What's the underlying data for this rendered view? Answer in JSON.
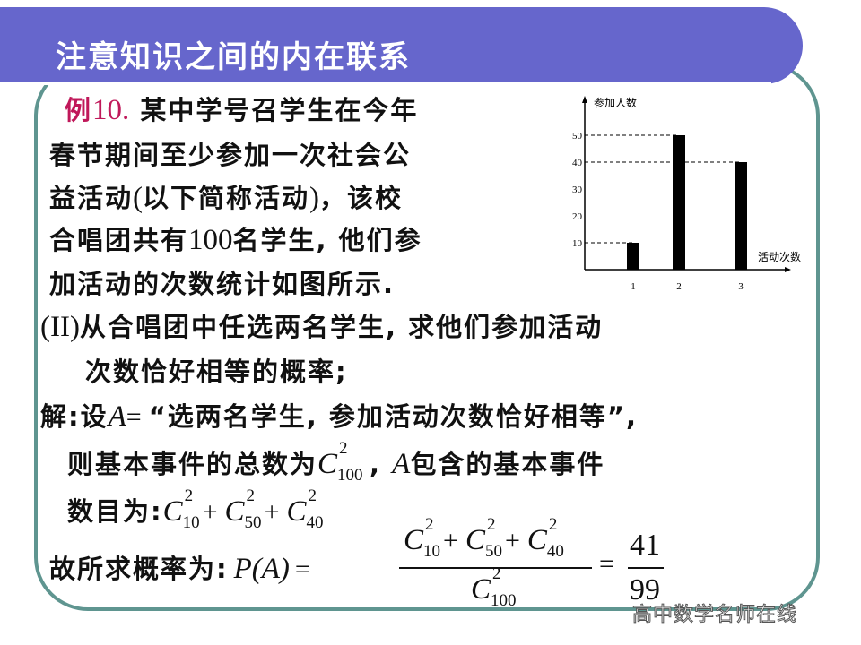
{
  "header": {
    "title": "注意知识之间的内在联系"
  },
  "problem": {
    "label_char": "例",
    "label_num": "10.",
    "lines": [
      "某中学号召学生在今年",
      "春节期间至少参加一次社会公",
      "益活动",
      "以下简称活动",
      "，该校",
      "合唱团共有",
      "100",
      "名学生, 他们参",
      "加活动的次数统计如图所示."
    ],
    "part_label": "II",
    "part_q1": "从合唱团中任选两名学生, 求他们参加活动",
    "part_q2": "次数恰好相等的概率;"
  },
  "solution": {
    "jie": "解",
    "line1_a": ":设",
    "event": "A",
    "eq": "=",
    "line1_b": "“选两名学生, 参加活动次数恰好相等”,",
    "line2_a": "则基本事件的总数为",
    "line2_b": ", ",
    "line2_c": "包含的基本事件",
    "line3_a": "数目为:",
    "line4_a": "故所求概率为:",
    "p_expr": "P(A)",
    "plus": "+",
    "result_num": "41",
    "result_den": "99",
    "comb": {
      "C": "C",
      "k": "2",
      "n100": "100",
      "n10": "10",
      "n50": "50",
      "n40": "40"
    }
  },
  "chart_data": {
    "type": "bar",
    "ylabel": "参加人数",
    "xlabel": "活动次数",
    "categories": [
      "1",
      "2",
      "3"
    ],
    "values": [
      10,
      50,
      40
    ],
    "yticks": [
      10,
      20,
      30,
      40,
      50
    ],
    "ylim": [
      0,
      60
    ],
    "dashed_reference_lines": [
      10,
      40,
      50
    ],
    "grid": false,
    "bar_color": "#000000"
  },
  "watermark": "高中数学名师在线",
  "colors": {
    "band": "#6666cc",
    "frame": "#5f9590",
    "accent": "#c0185a"
  }
}
